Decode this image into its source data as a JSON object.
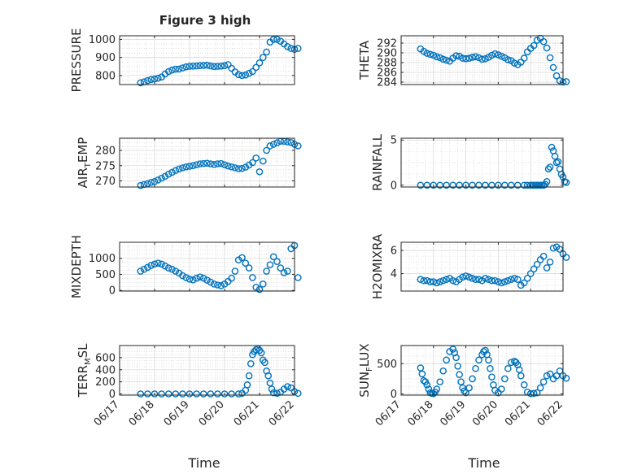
{
  "figure": {
    "title": "Figure 3 high",
    "xlabel": "Time",
    "date_ticks": [
      "06/17",
      "06/18",
      "06/19",
      "06/20",
      "06/21",
      "06/22"
    ]
  },
  "style": {
    "marker_color": "#0072BD",
    "axis_color": "#262626",
    "grid_color": "#d9d9d9",
    "background": "#ffffff"
  },
  "chart_data": [
    {
      "id": "pressure",
      "type": "scatter",
      "ylabel": "PRESSURE",
      "ylabel_base": "PRESSURE",
      "ylabel_sub": "",
      "xlim": [
        "06/17",
        "06/22"
      ],
      "ylim": [
        750,
        1020
      ],
      "yticks": [
        800,
        900,
        1000
      ],
      "grid": true,
      "x": [
        0.6,
        0.7,
        0.8,
        0.9,
        1.0,
        1.1,
        1.2,
        1.3,
        1.4,
        1.5,
        1.6,
        1.7,
        1.8,
        1.9,
        2.0,
        2.1,
        2.2,
        2.3,
        2.4,
        2.5,
        2.6,
        2.7,
        2.8,
        2.9,
        3.0,
        3.1,
        3.2,
        3.3,
        3.4,
        3.5,
        3.6,
        3.7,
        3.8,
        3.9,
        4.0,
        4.1,
        4.2,
        4.3,
        4.4,
        4.5,
        4.6,
        4.7,
        4.8,
        4.9,
        5.0,
        5.1
      ],
      "y": [
        760,
        765,
        772,
        778,
        781,
        785,
        792,
        808,
        822,
        830,
        835,
        836,
        842,
        848,
        851,
        852,
        853,
        855,
        856,
        857,
        853,
        850,
        851,
        852,
        855,
        860,
        840,
        820,
        805,
        800,
        803,
        812,
        822,
        845,
        870,
        900,
        930,
        985,
        1000,
        1000,
        990,
        975,
        960,
        950,
        945,
        950
      ]
    },
    {
      "id": "theta",
      "type": "scatter",
      "ylabel": "THETA",
      "ylabel_base": "THETA",
      "ylabel_sub": "",
      "xlim": [
        "06/17",
        "06/22"
      ],
      "ylim": [
        283.5,
        293.5
      ],
      "yticks": [
        284,
        286,
        288,
        290,
        292
      ],
      "grid": true,
      "x": [
        0.6,
        0.7,
        0.8,
        0.9,
        1.0,
        1.1,
        1.2,
        1.3,
        1.4,
        1.5,
        1.6,
        1.7,
        1.8,
        1.9,
        2.0,
        2.1,
        2.2,
        2.3,
        2.4,
        2.5,
        2.6,
        2.7,
        2.8,
        2.9,
        3.0,
        3.1,
        3.2,
        3.3,
        3.4,
        3.5,
        3.6,
        3.7,
        3.8,
        3.9,
        4.0,
        4.1,
        4.2,
        4.3,
        4.4,
        4.5,
        4.6,
        4.7,
        4.8,
        4.9,
        5.0,
        5.1
      ],
      "y": [
        290.8,
        290.3,
        289.9,
        289.7,
        289.5,
        289.2,
        289.0,
        288.7,
        288.5,
        288.3,
        288.9,
        289.4,
        289.3,
        288.9,
        288.8,
        288.9,
        289.1,
        289.2,
        289.0,
        288.7,
        288.8,
        289.1,
        289.5,
        289.8,
        289.6,
        289.3,
        289.0,
        288.6,
        288.4,
        287.9,
        287.6,
        288.1,
        288.9,
        290.2,
        290.9,
        291.5,
        292.6,
        293.0,
        292.3,
        291.0,
        289.0,
        287.0,
        285.3,
        284.3,
        284.0,
        284.1
      ]
    },
    {
      "id": "air_temp",
      "type": "scatter",
      "ylabel": "AIR_TEMP",
      "ylabel_base": "AIR",
      "ylabel_sub": "T",
      "ylabel_rest": "EMP",
      "xlim": [
        "06/17",
        "06/22"
      ],
      "ylim": [
        268,
        284
      ],
      "yticks": [
        270,
        275,
        280
      ],
      "grid": true,
      "x": [
        0.6,
        0.7,
        0.8,
        0.9,
        1.0,
        1.1,
        1.2,
        1.3,
        1.4,
        1.5,
        1.6,
        1.7,
        1.8,
        1.9,
        2.0,
        2.1,
        2.2,
        2.3,
        2.4,
        2.5,
        2.6,
        2.7,
        2.8,
        2.9,
        3.0,
        3.1,
        3.2,
        3.3,
        3.4,
        3.5,
        3.6,
        3.7,
        3.8,
        3.9,
        4.0,
        4.1,
        4.2,
        4.3,
        4.4,
        4.5,
        4.6,
        4.7,
        4.8,
        4.9,
        5.0,
        5.1
      ],
      "y": [
        268.5,
        268.8,
        269.1,
        269.5,
        269.8,
        270.3,
        270.9,
        271.5,
        272.2,
        272.8,
        273.4,
        273.9,
        274.3,
        274.6,
        274.8,
        275.0,
        275.3,
        275.6,
        275.7,
        275.8,
        275.6,
        275.4,
        275.6,
        275.7,
        275.3,
        274.9,
        274.6,
        274.3,
        274.0,
        274.1,
        274.5,
        275.2,
        276.0,
        277.5,
        273.0,
        276.5,
        280.0,
        281.5,
        282.0,
        282.5,
        283.0,
        283.0,
        282.8,
        282.6,
        282.0,
        281.5
      ]
    },
    {
      "id": "rainfall",
      "type": "scatter",
      "ylabel": "RAINFALL",
      "ylabel_base": "RAINFALL",
      "ylabel_sub": "",
      "xlim": [
        "06/17",
        "06/22"
      ],
      "ylim": [
        -0.2,
        5.2
      ],
      "yticks": [
        0,
        5
      ],
      "grid": true,
      "x": [
        0.6,
        0.8,
        1.0,
        1.2,
        1.4,
        1.6,
        1.8,
        2.0,
        2.2,
        2.4,
        2.6,
        2.8,
        3.0,
        3.2,
        3.4,
        3.6,
        3.8,
        3.9,
        4.0,
        4.05,
        4.1,
        4.15,
        4.2,
        4.25,
        4.3,
        4.35,
        4.4,
        4.45,
        4.5,
        4.55,
        4.6,
        4.65,
        4.7,
        4.75,
        4.8,
        4.85,
        4.9,
        4.95,
        5.0,
        5.05,
        5.1
      ],
      "y": [
        0,
        0,
        0,
        0,
        0,
        0,
        0,
        0,
        0,
        0,
        0,
        0,
        0,
        0,
        0,
        0,
        0,
        0,
        0,
        0,
        0,
        0,
        0,
        0,
        0,
        0,
        0,
        0.1,
        0.4,
        1.8,
        2.0,
        4.2,
        3.8,
        3.2,
        2.5,
        2.6,
        1.8,
        1.2,
        0.9,
        0.4,
        0.3
      ]
    },
    {
      "id": "mixdepth",
      "type": "scatter",
      "ylabel": "MIXDEPTH",
      "ylabel_base": "MIXDEPTH",
      "ylabel_sub": "",
      "xlim": [
        "06/17",
        "06/22"
      ],
      "ylim": [
        -20,
        1500
      ],
      "yticks": [
        0,
        500,
        1000
      ],
      "grid": true,
      "x": [
        0.6,
        0.7,
        0.8,
        0.9,
        1.0,
        1.1,
        1.2,
        1.3,
        1.4,
        1.5,
        1.6,
        1.7,
        1.8,
        1.9,
        2.0,
        2.1,
        2.2,
        2.3,
        2.4,
        2.5,
        2.6,
        2.7,
        2.8,
        2.9,
        3.0,
        3.1,
        3.2,
        3.3,
        3.4,
        3.5,
        3.6,
        3.7,
        3.8,
        3.9,
        4.0,
        4.1,
        4.2,
        4.3,
        4.4,
        4.5,
        4.6,
        4.7,
        4.8,
        4.9,
        5.0,
        5.1
      ],
      "y": [
        600,
        660,
        720,
        780,
        820,
        850,
        820,
        760,
        700,
        660,
        600,
        540,
        460,
        400,
        350,
        330,
        380,
        420,
        380,
        320,
        260,
        200,
        170,
        150,
        200,
        280,
        380,
        600,
        950,
        1020,
        850,
        700,
        400,
        100,
        30,
        200,
        600,
        800,
        1050,
        900,
        700,
        550,
        600,
        1300,
        1400,
        400
      ]
    },
    {
      "id": "h2omixra",
      "type": "scatter",
      "ylabel": "H2OMIXRA",
      "ylabel_base": "H2OMIXRA",
      "ylabel_sub": "",
      "xlim": [
        "06/17",
        "06/22"
      ],
      "ylim": [
        2.5,
        6.7
      ],
      "yticks": [
        4,
        6
      ],
      "grid": true,
      "x": [
        0.6,
        0.7,
        0.8,
        0.9,
        1.0,
        1.1,
        1.2,
        1.3,
        1.4,
        1.5,
        1.6,
        1.7,
        1.8,
        1.9,
        2.0,
        2.1,
        2.2,
        2.3,
        2.4,
        2.5,
        2.6,
        2.7,
        2.8,
        2.9,
        3.0,
        3.1,
        3.2,
        3.3,
        3.4,
        3.5,
        3.6,
        3.7,
        3.8,
        3.9,
        4.0,
        4.1,
        4.2,
        4.3,
        4.4,
        4.5,
        4.6,
        4.7,
        4.8,
        4.9,
        5.0,
        5.1
      ],
      "y": [
        3.5,
        3.4,
        3.4,
        3.3,
        3.3,
        3.2,
        3.3,
        3.4,
        3.5,
        3.6,
        3.4,
        3.3,
        3.5,
        3.7,
        3.8,
        3.7,
        3.6,
        3.5,
        3.5,
        3.4,
        3.6,
        3.5,
        3.4,
        3.4,
        3.3,
        3.2,
        3.3,
        3.4,
        3.5,
        3.6,
        3.5,
        3.0,
        3.2,
        3.6,
        4.0,
        4.4,
        4.8,
        5.2,
        5.5,
        4.5,
        5.0,
        6.2,
        6.3,
        6.1,
        5.7,
        5.4
      ]
    },
    {
      "id": "terr_msl",
      "type": "scatter",
      "ylabel": "TERR_MSL",
      "ylabel_base": "TERR",
      "ylabel_sub": "M",
      "ylabel_rest": "SL",
      "xlim": [
        "06/17",
        "06/22"
      ],
      "ylim": [
        -20,
        800
      ],
      "yticks": [
        0,
        200,
        400,
        600
      ],
      "grid": true,
      "x": [
        0.6,
        0.8,
        1.0,
        1.2,
        1.4,
        1.6,
        1.8,
        2.0,
        2.2,
        2.4,
        2.6,
        2.8,
        3.0,
        3.2,
        3.4,
        3.5,
        3.6,
        3.65,
        3.7,
        3.75,
        3.8,
        3.85,
        3.9,
        3.95,
        4.0,
        4.05,
        4.1,
        4.15,
        4.2,
        4.25,
        4.3,
        4.35,
        4.4,
        4.5,
        4.6,
        4.7,
        4.8,
        4.9,
        5.0,
        5.1
      ],
      "y": [
        0,
        0,
        0,
        0,
        0,
        0,
        0,
        0,
        0,
        0,
        0,
        0,
        0,
        0,
        0,
        10,
        60,
        150,
        300,
        500,
        650,
        700,
        730,
        750,
        720,
        680,
        560,
        520,
        380,
        300,
        180,
        80,
        20,
        10,
        30,
        80,
        120,
        100,
        40,
        10
      ]
    },
    {
      "id": "sun_flux",
      "type": "scatter",
      "ylabel": "SUN_FLUX",
      "ylabel_base": "SUN",
      "ylabel_sub": "F",
      "ylabel_rest": "LUX",
      "xlim": [
        "06/17",
        "06/22"
      ],
      "ylim": [
        -20,
        800
      ],
      "yticks": [
        0,
        500
      ],
      "grid": true,
      "x": [
        0.6,
        0.65,
        0.7,
        0.75,
        0.8,
        0.85,
        0.9,
        0.95,
        1.0,
        1.05,
        1.1,
        1.2,
        1.3,
        1.4,
        1.5,
        1.6,
        1.65,
        1.7,
        1.75,
        1.8,
        1.85,
        1.9,
        1.95,
        2.0,
        2.1,
        2.2,
        2.3,
        2.4,
        2.5,
        2.55,
        2.6,
        2.65,
        2.7,
        2.75,
        2.8,
        2.85,
        2.9,
        3.0,
        3.1,
        3.2,
        3.3,
        3.4,
        3.5,
        3.55,
        3.6,
        3.65,
        3.7,
        3.8,
        3.9,
        4.0,
        4.1,
        4.2,
        4.3,
        4.4,
        4.5,
        4.6,
        4.7,
        4.8,
        4.9,
        5.0,
        5.1
      ],
      "y": [
        430,
        330,
        220,
        200,
        150,
        80,
        20,
        10,
        5,
        30,
        80,
        200,
        380,
        560,
        700,
        740,
        680,
        600,
        460,
        320,
        200,
        100,
        50,
        20,
        100,
        250,
        420,
        560,
        650,
        700,
        720,
        650,
        560,
        420,
        280,
        150,
        60,
        20,
        80,
        250,
        420,
        520,
        540,
        520,
        480,
        400,
        300,
        150,
        30,
        5,
        10,
        20,
        100,
        200,
        300,
        330,
        250,
        300,
        380,
        300,
        260
      ]
    }
  ]
}
